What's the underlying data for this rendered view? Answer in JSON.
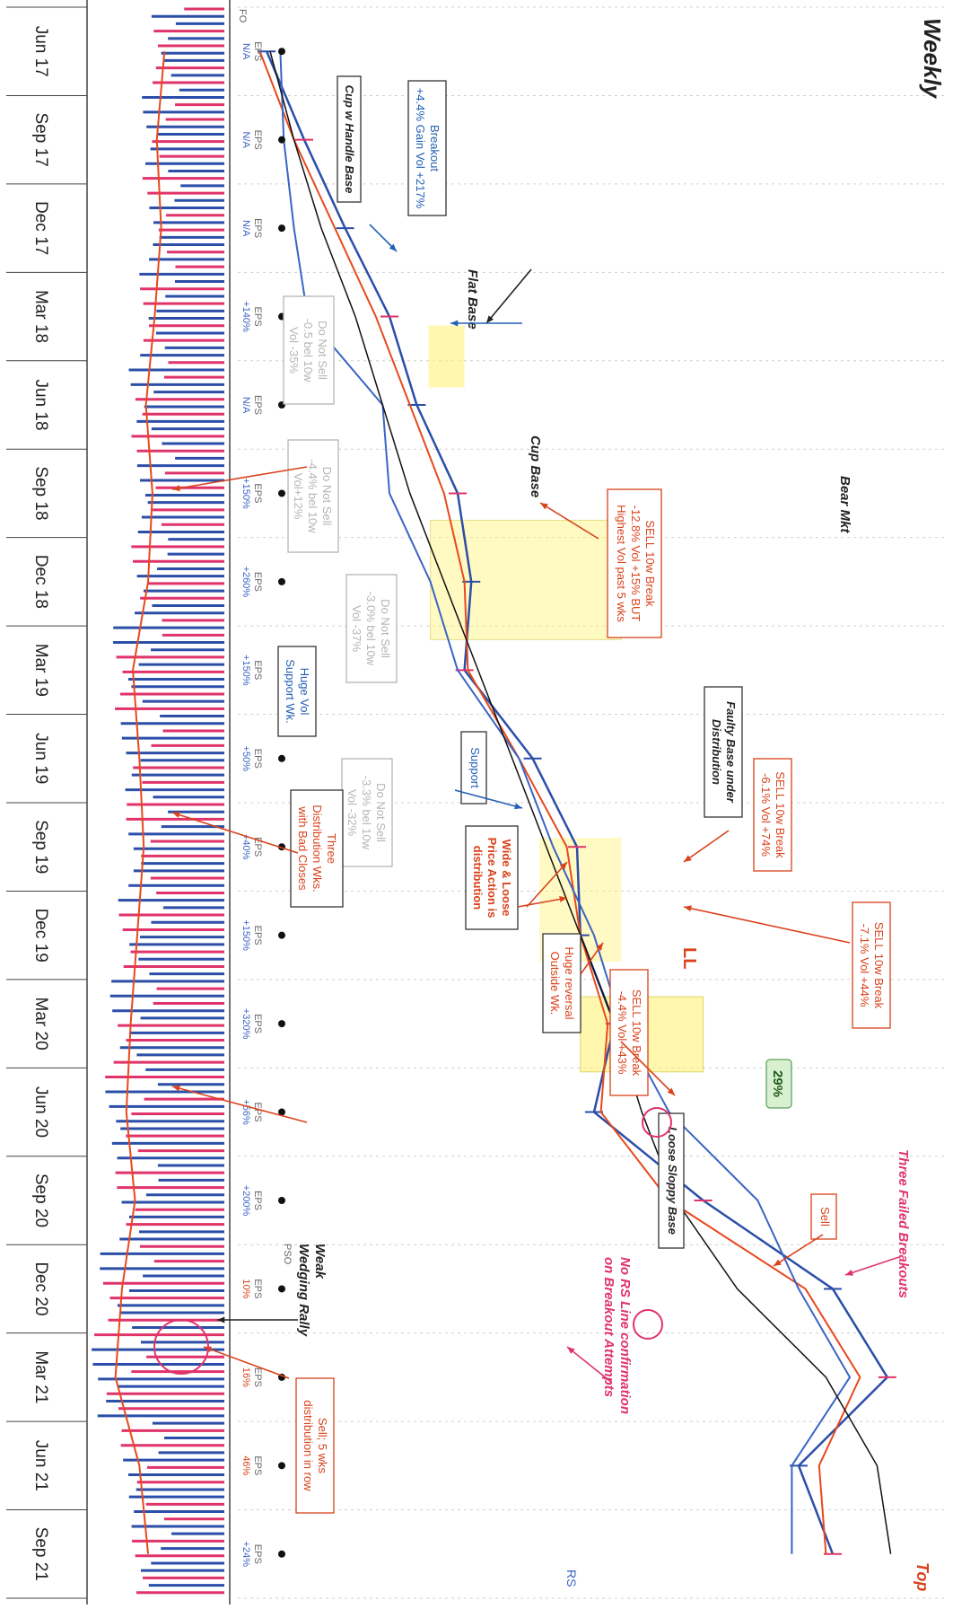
{
  "title": "Weekly",
  "top_label": "Top",
  "rs_label": "RS",
  "pct_badge": "29%",
  "ll_label": "LL",
  "corner_marks": [
    "FO",
    "PSO"
  ],
  "colors": {
    "up_bar": "#2b4ea8",
    "down_bar": "#e0336a",
    "ma_red": "#e8491d",
    "ma_green": "#2f9a3a",
    "rs_line": "#3b64c4",
    "trend_black": "#111111",
    "highlight": "#fff27a",
    "annot_red": "#d9421b",
    "annot_blue": "#2461b5",
    "annot_gray": "#b5b5b5",
    "annot_pink": "#e0336a",
    "badge_green": "#d8f0cf"
  },
  "dates": [
    "Jun 17",
    "Sep 17",
    "Dec 17",
    "Mar 18",
    "Jun 18",
    "Sep 18",
    "Dec 18",
    "Mar 19",
    "Jun 19",
    "Sep 19",
    "Dec 19",
    "Mar 20",
    "Jun 20",
    "Sep 20",
    "Dec 20",
    "Mar 21",
    "Jun 21",
    "Sep 21"
  ],
  "eps": [
    {
      "label": "EPS",
      "value": "N/A"
    },
    {
      "label": "EPS",
      "value": "N/A"
    },
    {
      "label": "EPS",
      "value": "N/A"
    },
    {
      "label": "EPS",
      "value": "+140%"
    },
    {
      "label": "EPS",
      "value": "N/A"
    },
    {
      "label": "EPS",
      "value": "+150%"
    },
    {
      "label": "EPS",
      "value": "+260%"
    },
    {
      "label": "EPS",
      "value": "+150%"
    },
    {
      "label": "EPS",
      "value": "+50%"
    },
    {
      "label": "EPS",
      "value": "+40%"
    },
    {
      "label": "EPS",
      "value": "+150%"
    },
    {
      "label": "EPS",
      "value": "+320%"
    },
    {
      "label": "EPS",
      "value": "+56%"
    },
    {
      "label": "EPS",
      "value": "+200%"
    },
    {
      "label": "EPS",
      "value": "10%"
    },
    {
      "label": "EPS",
      "value": "16%"
    },
    {
      "label": "EPS",
      "value": "46%"
    },
    {
      "label": "EPS",
      "value": "+24%"
    }
  ],
  "annotations": {
    "breakout": [
      "Breakout",
      "+4.4% Gain  Vol +217%"
    ],
    "cup_handle": [
      "Cup w Handle Base"
    ],
    "flat_base": [
      "Flat Base"
    ],
    "cup_base": [
      "Cup Base"
    ],
    "bear_mkt": [
      "Bear Mkt"
    ],
    "sell_128": [
      "SELL 10w Break",
      "-12.8% Vol +15% BUT",
      "Highest Vol past 5 wks"
    ],
    "dns1": [
      "Do Not Sell",
      "-0.5 bel 10w",
      "Vol -35%"
    ],
    "dns2": [
      "Do Not Sell",
      "-4.4% bel 10w",
      "Vol+12%"
    ],
    "dns3": [
      "Do Not Sell",
      "-3.0% bel 10w",
      "Vol -37%"
    ],
    "dns4": [
      "Do Not Sell",
      "-3.3% bel 10w",
      "Vol -32%"
    ],
    "faulty": [
      "Faulty Base under",
      "Distribution"
    ],
    "support": [
      "Support"
    ],
    "huge_vol": [
      "Huge Vol",
      "Support Wk."
    ],
    "sell_61": [
      "SELL 10w Break",
      "-6.1% Vol +74%"
    ],
    "wide_loose": [
      "Wide & Loose",
      "Price Action is",
      "distribution"
    ],
    "huge_reversal": [
      "Huge reversal",
      "Outside Wk."
    ],
    "three_dist": [
      "Three",
      "Distribution Wks.",
      "with Bad Closes"
    ],
    "sell_71": [
      "SELL 10w Break",
      "-7.1% Vol +44%"
    ],
    "sell_44": [
      "SELL 10w Break",
      "-4.4% Vol +43%"
    ],
    "loose_sloppy": [
      "Loose Sloppy Base"
    ],
    "sell": [
      "Sell"
    ],
    "three_failed": [
      "Three Failed Breakouts"
    ],
    "no_rs": [
      "No RS Line confirmation",
      "on Breakout Attempts"
    ],
    "weak_wedge": [
      "Weak",
      "Wedging Rally"
    ],
    "sell_5wks": [
      "Sell; 5 wks",
      "distribution in row"
    ]
  },
  "chart_data": {
    "type": "line",
    "title": "Weekly",
    "x_unit": "week",
    "categories": [
      "Jun 17",
      "Sep 17",
      "Dec 17",
      "Mar 18",
      "Jun 18",
      "Sep 18",
      "Dec 18",
      "Mar 19",
      "Jun 19",
      "Sep 19",
      "Dec 19",
      "Mar 20",
      "Jun 20",
      "Sep 20",
      "Dec 20",
      "Mar 21",
      "Jun 21",
      "Sep 21"
    ],
    "series": [
      {
        "values": [
          4,
          15,
          27,
          40,
          48,
          60,
          64,
          62,
          82,
          95,
          96,
          106,
          100,
          132,
          170,
          186,
          160,
          170
        ]
      },
      {
        "values": [
          2,
          12,
          24,
          36,
          46,
          56,
          62,
          63,
          78,
          92,
          96,
          104,
          102,
          122,
          162,
          178,
          166,
          168
        ]
      },
      {
        "values": [
          8,
          9,
          12,
          16,
          38,
          40,
          52,
          60,
          78,
          88,
          100,
          108,
          122,
          148,
          160,
          175,
          158,
          158
        ]
      },
      {
        "values": [
          5,
          12,
          20,
          30,
          38,
          46,
          56,
          66,
          76,
          86,
          96,
          106,
          114,
          124,
          142,
          168,
          183,
          187
        ]
      }
    ],
    "volume": {
      "values": [
        0.55,
        0.62,
        0.58,
        0.64,
        0.72,
        0.66,
        0.7,
        0.84,
        0.78,
        0.74,
        0.8,
        0.86,
        0.9,
        0.82,
        0.94,
        1.0,
        0.78,
        0.7
      ]
    },
    "grid": true
  }
}
